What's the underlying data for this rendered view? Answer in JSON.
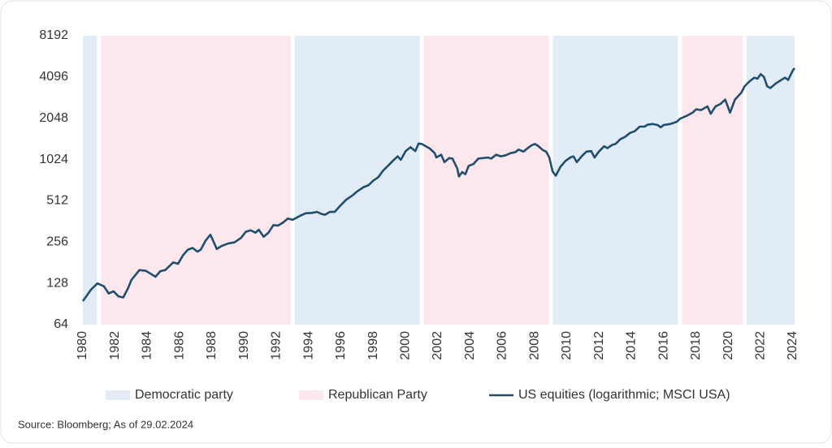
{
  "chart_data": {
    "type": "line",
    "yscale": "log",
    "ylim": [
      64,
      8192
    ],
    "yticks": [
      64,
      128,
      256,
      512,
      1024,
      2048,
      4096,
      8192
    ],
    "xlim": [
      1980,
      2024.1
    ],
    "xticks": [
      1980,
      1982,
      1984,
      1986,
      1988,
      1990,
      1992,
      1994,
      1996,
      1998,
      2000,
      2002,
      2004,
      2006,
      2008,
      2010,
      2012,
      2014,
      2016,
      2018,
      2020,
      2022,
      2024
    ],
    "bands": [
      {
        "name": "Democratic party",
        "color": "#e2ecf6",
        "ranges": [
          [
            1980,
            1981
          ],
          [
            1993,
            2001
          ],
          [
            2009,
            2017
          ],
          [
            2021,
            2024.1
          ]
        ]
      },
      {
        "name": "Republican Party",
        "color": "#fce7ed",
        "ranges": [
          [
            1981,
            1993
          ],
          [
            2001,
            2009
          ],
          [
            2017,
            2021
          ]
        ]
      }
    ],
    "series": [
      {
        "name": "US equities (logarithmic; MSCI USA)",
        "color": "#1f4e6e",
        "x": [
          1980.0,
          1980.5,
          1980.9,
          1981.3,
          1981.6,
          1981.9,
          1982.2,
          1982.5,
          1982.8,
          1983.0,
          1983.5,
          1983.9,
          1984.3,
          1984.5,
          1984.8,
          1985.1,
          1985.6,
          1985.9,
          1986.2,
          1986.5,
          1986.8,
          1987.1,
          1987.3,
          1987.6,
          1987.9,
          1988.3,
          1988.6,
          1989.0,
          1989.4,
          1989.8,
          1990.1,
          1990.4,
          1990.7,
          1990.9,
          1991.2,
          1991.5,
          1991.8,
          1992.1,
          1992.4,
          1992.7,
          1993.0,
          1993.4,
          1993.8,
          1994.2,
          1994.5,
          1994.8,
          1995.0,
          1995.3,
          1995.6,
          1995.9,
          1996.3,
          1996.7,
          1997.0,
          1997.4,
          1997.7,
          1998.0,
          1998.3,
          1998.6,
          1998.9,
          1999.2,
          1999.5,
          1999.7,
          2000.0,
          2000.3,
          2000.6,
          2000.8,
          2001.0,
          2001.2,
          2001.5,
          2001.8,
          2001.9,
          2002.2,
          2002.4,
          2002.7,
          2002.9,
          2003.2,
          2003.3,
          2003.5,
          2003.7,
          2003.9,
          2004.2,
          2004.5,
          2004.8,
          2005.1,
          2005.3,
          2005.6,
          2005.9,
          2006.2,
          2006.5,
          2006.8,
          2007.0,
          2007.3,
          2007.6,
          2007.8,
          2008.0,
          2008.2,
          2008.5,
          2008.7,
          2008.9,
          2009.1,
          2009.3,
          2009.6,
          2009.9,
          2010.2,
          2010.4,
          2010.6,
          2010.9,
          2011.2,
          2011.5,
          2011.7,
          2012.0,
          2012.3,
          2012.5,
          2012.8,
          2013.0,
          2013.3,
          2013.6,
          2013.9,
          2014.2,
          2014.5,
          2014.8,
          2015.0,
          2015.3,
          2015.6,
          2015.8,
          2016.0,
          2016.4,
          2016.8,
          2017.0,
          2017.4,
          2017.8,
          2018.0,
          2018.3,
          2018.7,
          2018.9,
          2019.2,
          2019.5,
          2019.8,
          2020.1,
          2020.4,
          2020.8,
          2021.0,
          2021.3,
          2021.6,
          2021.8,
          2022.0,
          2022.2,
          2022.4,
          2022.6,
          2022.9,
          2023.2,
          2023.5,
          2023.7,
          2024.0,
          2024.1
        ],
        "values": [
          95,
          115,
          128,
          122,
          108,
          112,
          103,
          101,
          118,
          135,
          160,
          158,
          148,
          143,
          157,
          160,
          182,
          178,
          205,
          225,
          232,
          218,
          225,
          262,
          290,
          228,
          240,
          250,
          255,
          275,
          305,
          312,
          300,
          315,
          280,
          300,
          340,
          338,
          355,
          380,
          372,
          395,
          415,
          418,
          425,
          410,
          405,
          425,
          425,
          465,
          520,
          560,
          600,
          645,
          665,
          720,
          760,
          850,
          920,
          1000,
          1080,
          1020,
          1180,
          1260,
          1180,
          1340,
          1330,
          1290,
          1230,
          1140,
          1060,
          1110,
          980,
          1050,
          1040,
          880,
          770,
          830,
          800,
          920,
          950,
          1040,
          1050,
          1060,
          1040,
          1110,
          1080,
          1100,
          1140,
          1160,
          1210,
          1170,
          1250,
          1300,
          1330,
          1290,
          1200,
          1170,
          1060,
          840,
          780,
          910,
          1000,
          1060,
          1080,
          980,
          1080,
          1170,
          1180,
          1060,
          1180,
          1280,
          1240,
          1310,
          1330,
          1440,
          1500,
          1600,
          1650,
          1780,
          1780,
          1840,
          1860,
          1830,
          1760,
          1830,
          1860,
          1930,
          2030,
          2130,
          2260,
          2380,
          2350,
          2500,
          2210,
          2500,
          2600,
          2800,
          2250,
          2800,
          3150,
          3500,
          3800,
          4050,
          3980,
          4300,
          4100,
          3500,
          3400,
          3650,
          3850,
          4050,
          3900,
          4600,
          4750
        ]
      }
    ],
    "source": "Source: Bloomberg; As of 29.02.2024"
  }
}
